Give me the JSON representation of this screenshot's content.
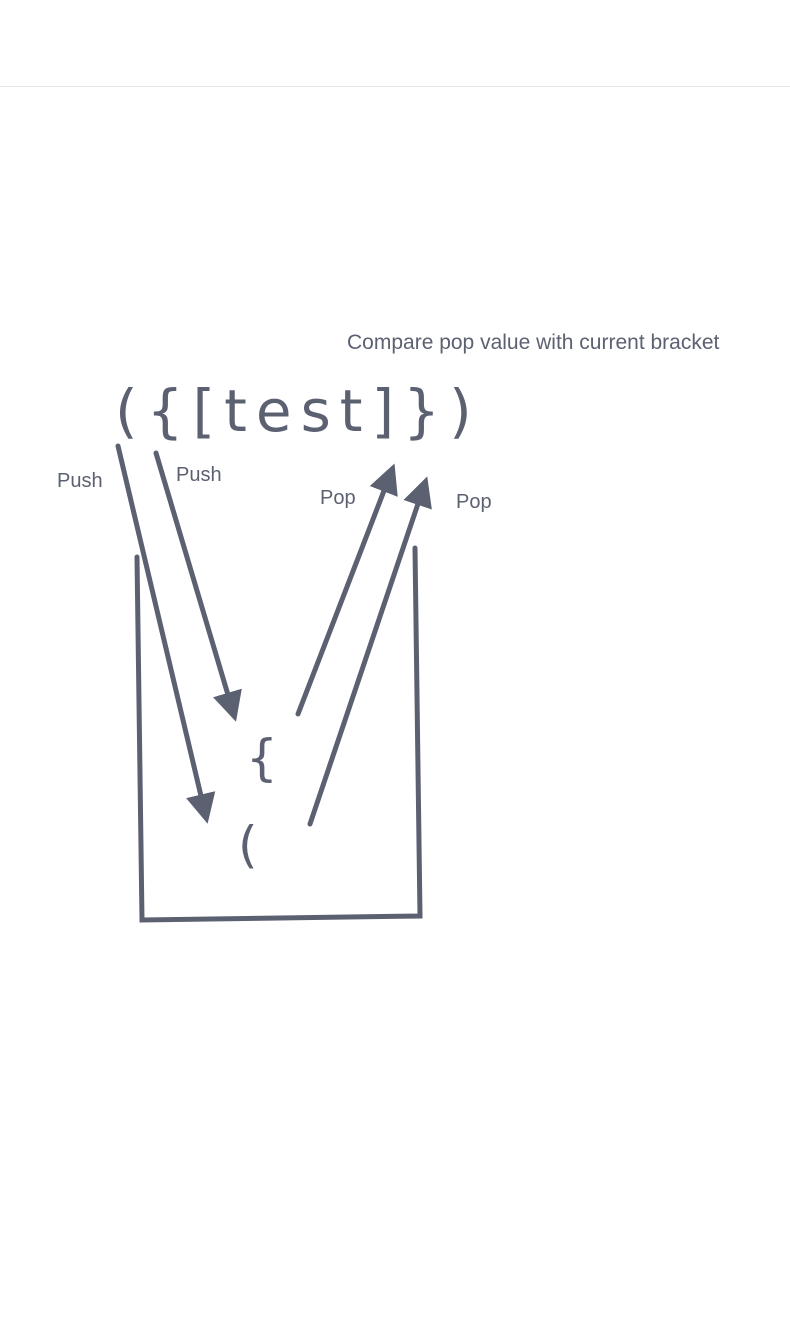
{
  "caption": "Compare pop value with current bracket",
  "expression": "({[test]})",
  "stack_items": [
    "{",
    "("
  ],
  "arrows": {
    "push_left": "Push",
    "push_right": "Push",
    "pop_left": "Pop",
    "pop_right": "Pop"
  },
  "colors": {
    "ink": "#5c6172",
    "divider": "#e6e7ea",
    "background": "#ffffff"
  }
}
